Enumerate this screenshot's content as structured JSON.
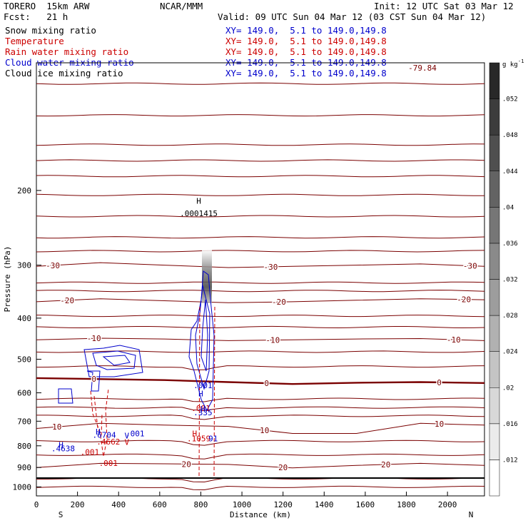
{
  "header": {
    "model": "TORERO  15km ARW",
    "center": "NCAR/MMM",
    "init": "Init: 12 UTC Sat 03 Mar 12",
    "fcst": "Fcst:   21 h",
    "valid": "Valid: 09 UTC Sun 04 Mar 12 (03 CST Sun 04 Mar 12)"
  },
  "legend": [
    {
      "label": "Snow mixing ratio",
      "xy": "XY= 149.0,  5.1 to 149.0,149.8",
      "color": "#000000"
    },
    {
      "label": "Temperature",
      "xy": "XY= 149.0,  5.1 to 149.0,149.8",
      "color": "#cc0000"
    },
    {
      "label": "Rain water mixing ratio",
      "xy": "XY= 149.0,  5.1 to 149.0,149.8",
      "color": "#cc0000"
    },
    {
      "label": "Cloud water mixing ratio",
      "xy": "XY= 149.0,  5.1 to 149.0,149.8",
      "color": "#0000cc"
    },
    {
      "label": "Cloud ice mixing ratio",
      "xy": "XY= 149.0,  5.1 to 149.0,149.8",
      "color": "#000000"
    }
  ],
  "chart_data": {
    "type": "cross-section contour",
    "xlabel": "Distance (km)",
    "ylabel": "Pressure (hPa)",
    "xlim": [
      0,
      2180
    ],
    "ylim": [
      1050,
      100
    ],
    "x_ticks": [
      0,
      200,
      400,
      600,
      800,
      1000,
      1200,
      1400,
      1600,
      1800,
      2000
    ],
    "y_ticks": [
      200,
      300,
      400,
      500,
      600,
      700,
      800,
      900,
      1000
    ],
    "y_tick_labels": [
      "200",
      "300",
      "400",
      "500",
      "600",
      "700",
      "800",
      "900",
      "1000"
    ],
    "endpoint_left": "S",
    "endpoint_right": "N",
    "colorbar": {
      "unit": "g kg",
      "unit_exp": "-1",
      "ticks": [
        ".012",
        ".016",
        ".02",
        ".024",
        ".028",
        ".032",
        ".036",
        ".04",
        ".044",
        ".048",
        ".052"
      ]
    },
    "temperature_contours": [
      {
        "label": "-30",
        "p": [
          302,
          296,
          300,
          304,
          302,
          300,
          298,
          302
        ],
        "label_x": [
          80,
          1140,
          2110
        ]
      },
      {
        "label": "-20",
        "p": [
          366,
          360,
          364,
          368,
          366,
          363,
          360,
          362
        ],
        "label_x": [
          150,
          1180,
          2080
        ]
      },
      {
        "label": "-10",
        "p": [
          450,
          446,
          448,
          452,
          450,
          448,
          447,
          452
        ],
        "label_x": [
          280,
          1150,
          2030
        ]
      },
      {
        "label": "0",
        "p": [
          554,
          557,
          560,
          566,
          572,
          568,
          566,
          569
        ],
        "label_x": [
          280,
          1120,
          1960
        ],
        "bold": true
      },
      {
        "label": "10",
        "p": [
          728,
          708,
          715,
          720,
          748,
          748,
          708,
          715
        ],
        "label_x": [
          100,
          1110,
          1960
        ]
      },
      {
        "label": "20",
        "p": [
          900,
          880,
          882,
          885,
          902,
          890,
          880,
          890
        ],
        "label_x": [
          730,
          1200,
          1700
        ]
      }
    ],
    "top_label": "-79.84",
    "annotations": [
      {
        "text": "H",
        "x": 790,
        "p": 215,
        "color": "#000000"
      },
      {
        "text": ".0001415",
        "x": 790,
        "p": 230,
        "color": "#000000"
      },
      {
        "text": "H",
        "x": 300,
        "p": 752,
        "color": "#0000cc"
      },
      {
        "text": ".6704",
        "x": 330,
        "p": 766,
        "color": "#0000cc"
      },
      {
        "text": "V",
        "x": 440,
        "p": 768,
        "color": "#0000cc"
      },
      {
        "text": ".001",
        "x": 480,
        "p": 760,
        "color": "#0000cc"
      },
      {
        "text": ".4662",
        "x": 350,
        "p": 795,
        "color": "#cc0000"
      },
      {
        "text": "V",
        "x": 440,
        "p": 796,
        "color": "#cc0000"
      },
      {
        "text": "H",
        "x": 120,
        "p": 808,
        "color": "#0000cc"
      },
      {
        "text": ".4638",
        "x": 130,
        "p": 825,
        "color": "#0000cc"
      },
      {
        "text": ".001",
        "x": 260,
        "p": 840,
        "color": "#cc0000"
      },
      {
        "text": ".001",
        "x": 350,
        "p": 893,
        "color": "#cc0000"
      },
      {
        "text": ".001",
        "x": 810,
        "p": 585,
        "color": "#0000cc"
      },
      {
        "text": "H",
        "x": 800,
        "p": 612,
        "color": "#0000cc"
      },
      {
        "text": ".001",
        "x": 800,
        "p": 662,
        "color": "#cc0000"
      },
      {
        "text": "H",
        "x": 810,
        "p": 665,
        "color": "#0000cc"
      },
      {
        "text": ".335",
        "x": 810,
        "p": 678,
        "color": "#0000cc"
      },
      {
        "text": "H",
        "x": 770,
        "p": 760,
        "color": "#cc0000"
      },
      {
        "text": ".1059",
        "x": 790,
        "p": 780,
        "color": "#cc0000"
      },
      {
        "text": "91",
        "x": 860,
        "p": 780,
        "color": "#0000cc"
      }
    ]
  },
  "colors": {
    "temperature": "#7a0000",
    "rain": "#cc0000",
    "cloud_water": "#0000cc",
    "text_red": "#cc0000",
    "text_blue": "#0000cc"
  }
}
